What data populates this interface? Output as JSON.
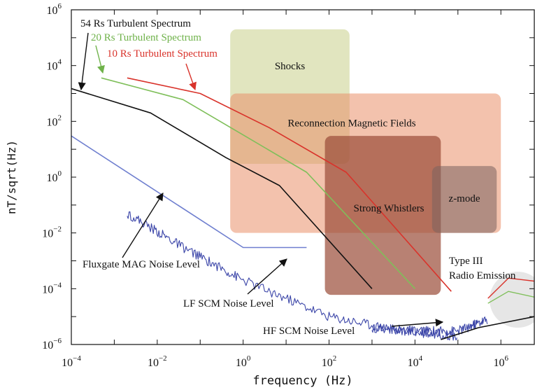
{
  "chart_data": {
    "type": "line",
    "title": "",
    "xlabel": "frequency (Hz)",
    "ylabel": "nT/sqrt(Hz)",
    "xscale": "log",
    "yscale": "log",
    "xlim": [
      0.0001,
      6000000
    ],
    "ylim": [
      1e-06,
      1000000
    ],
    "grid": false,
    "x_ticks": [
      {
        "value": 0.0001,
        "base": "10",
        "exp": "−4"
      },
      {
        "value": 0.01,
        "base": "10",
        "exp": "−2"
      },
      {
        "value": 1,
        "base": "10",
        "exp": "0"
      },
      {
        "value": 100,
        "base": "10",
        "exp": "2"
      },
      {
        "value": 10000,
        "base": "10",
        "exp": "4"
      },
      {
        "value": 1000000,
        "base": "10",
        "exp": "6"
      }
    ],
    "y_ticks": [
      {
        "value": 1e-06,
        "base": "10",
        "exp": "−6"
      },
      {
        "value": 0.0001,
        "base": "10",
        "exp": "−4"
      },
      {
        "value": 0.01,
        "base": "10",
        "exp": "−2"
      },
      {
        "value": 1,
        "base": "10",
        "exp": "0"
      },
      {
        "value": 100,
        "base": "10",
        "exp": "2"
      },
      {
        "value": 10000,
        "base": "10",
        "exp": "4"
      },
      {
        "value": 1000000,
        "base": "10",
        "exp": "6"
      }
    ],
    "regions": [
      {
        "label": "Shocks",
        "x": [
          0.5,
          300
        ],
        "y": [
          3,
          200000
        ],
        "color": "#c9d08a",
        "opacity": 0.55
      },
      {
        "label": "Reconnection Magnetic Fields",
        "x": [
          0.5,
          1000000
        ],
        "y": [
          0.01,
          1000
        ],
        "color": "#e9906a",
        "opacity": 0.55
      },
      {
        "label": "Strong Whistlers",
        "x": [
          80,
          40000
        ],
        "y": [
          6e-05,
          30
        ],
        "color": "#9a4c38",
        "opacity": 0.7
      },
      {
        "label": "z-mode",
        "x": [
          25000,
          800000
        ],
        "y": [
          0.01,
          2.5
        ],
        "color": "#7a625e",
        "opacity": 0.55
      }
    ],
    "series": [
      {
        "name": "54 Rs Turbulent Spectrum",
        "color": "#111111",
        "x": [
          0.0001,
          0.007,
          0.4,
          7,
          1000
        ],
        "y": [
          1500,
          200,
          5,
          0.5,
          0.0001
        ]
      },
      {
        "name": "20 Rs Turbulent Spectrum",
        "color": "#7fbf5a",
        "x": [
          0.0005,
          0.04,
          0.8,
          30,
          10000
        ],
        "y": [
          3600,
          600,
          40,
          1.5,
          0.0001
        ]
      },
      {
        "name": "10 Rs Turbulent Spectrum",
        "color": "#d9332b",
        "x": [
          0.002,
          0.1,
          4,
          250,
          70000
        ],
        "y": [
          3600,
          1000,
          60,
          1.5,
          8e-05
        ]
      },
      {
        "name": "Fluxgate MAG Noise Level",
        "color": "#6f7fcf",
        "x": [
          0.0001,
          1,
          30
        ],
        "y": [
          30,
          0.003,
          0.003
        ]
      },
      {
        "name": "LF SCM Noise Level",
        "color": "#3b45a8",
        "x": [
          0.002,
          0.04,
          1,
          100,
          5000,
          100000
        ],
        "y": [
          0.05,
          0.003,
          0.0002,
          1e-05,
          3e-06,
          2e-06
        ]
      },
      {
        "name": "HF SCM Noise Level",
        "color": "#3b45a8",
        "x": [
          1000,
          10000,
          100000,
          500000
        ],
        "y": [
          4e-06,
          3e-06,
          3e-06,
          8e-06
        ]
      },
      {
        "name": "Type III Radio Emission",
        "color": "#111111",
        "x": [
          40000,
          300000,
          6000000
        ],
        "y": [
          1.5e-06,
          4e-06,
          1e-05
        ]
      }
    ],
    "annotations": [
      {
        "text": "54 Rs Turbulent Spectrum",
        "color": "#111111"
      },
      {
        "text": "20 Rs Turbulent Spectrum",
        "color": "#6fb24a"
      },
      {
        "text": "10 Rs Turbulent Spectrum",
        "color": "#d9332b"
      },
      {
        "text": "Fluxgate MAG Noise Level",
        "color": "#111111"
      },
      {
        "text": "LF SCM Noise Level",
        "color": "#111111"
      },
      {
        "text": "HF SCM Noise Level",
        "color": "#111111"
      },
      {
        "text": "Type III",
        "color": "#111111"
      },
      {
        "text": "Radio Emission",
        "color": "#111111"
      }
    ]
  }
}
